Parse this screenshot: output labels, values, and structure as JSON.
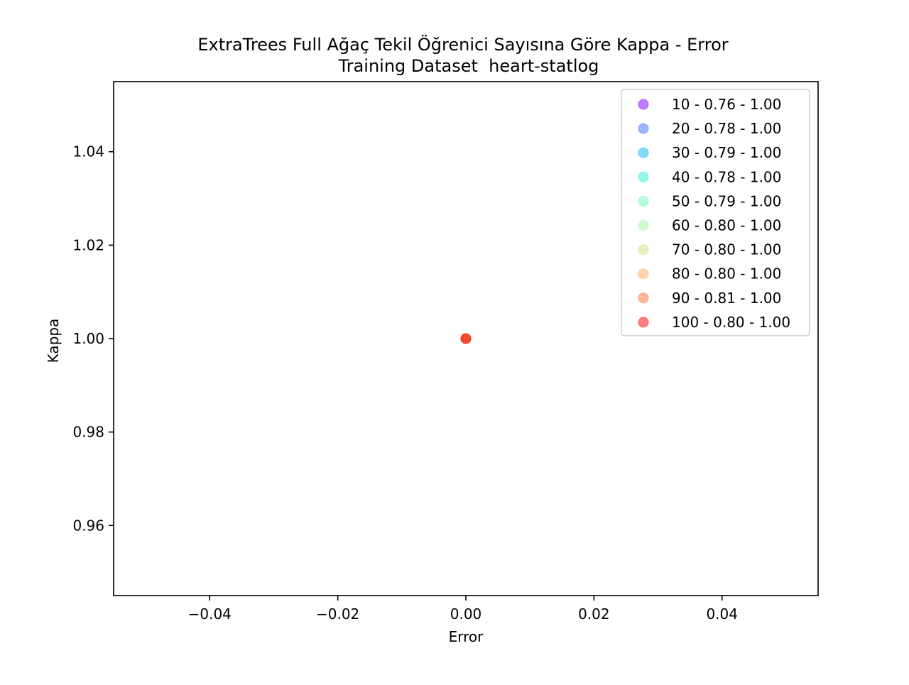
{
  "chart_data": {
    "type": "scatter",
    "title": "ExtraTrees Full Ağaç Tekil Öğrenici Sayısına Göre Kappa - Error",
    "subtitle": "Training Dataset  heart-statlog",
    "xlabel": "Error",
    "ylabel": "Kappa",
    "xlim": [
      -0.055,
      0.055
    ],
    "ylim": [
      0.945,
      1.055
    ],
    "xticks": [
      -0.04,
      -0.02,
      0.0,
      0.02,
      0.04
    ],
    "xtick_labels": [
      "−0.04",
      "−0.02",
      "0.00",
      "0.02",
      "0.04"
    ],
    "yticks": [
      0.96,
      0.98,
      1.0,
      1.02,
      1.04
    ],
    "ytick_labels": [
      "0.96",
      "0.98",
      "1.00",
      "1.02",
      "1.04"
    ],
    "grid": false,
    "legend_position": "top-right",
    "series": [
      {
        "name": "10 - 0.76 - 1.00",
        "color": "#8000ff",
        "x": [
          0.0
        ],
        "y": [
          1.0
        ]
      },
      {
        "name": "20 - 0.78 - 1.00",
        "color": "#3c6ef7",
        "x": [
          0.0
        ],
        "y": [
          1.0
        ]
      },
      {
        "name": "30 - 0.79 - 1.00",
        "color": "#07bbea",
        "x": [
          0.0
        ],
        "y": [
          1.0
        ]
      },
      {
        "name": "40 - 0.78 - 1.00",
        "color": "#2cf0d6",
        "x": [
          0.0
        ],
        "y": [
          1.0
        ]
      },
      {
        "name": "50 - 0.79 - 1.00",
        "color": "#6afcbc",
        "x": [
          0.0
        ],
        "y": [
          1.0
        ]
      },
      {
        "name": "60 - 0.80 - 1.00",
        "color": "#a4f89f",
        "x": [
          0.0
        ],
        "y": [
          1.0
        ]
      },
      {
        "name": "70 - 0.80 - 1.00",
        "color": "#d4db80",
        "x": [
          0.0
        ],
        "y": [
          1.0
        ]
      },
      {
        "name": "80 - 0.80 - 1.00",
        "color": "#ffa960",
        "x": [
          0.0
        ],
        "y": [
          1.0
        ]
      },
      {
        "name": "90 - 0.81 - 1.00",
        "color": "#ff6e3c",
        "x": [
          0.0
        ],
        "y": [
          1.0
        ]
      },
      {
        "name": "100 - 0.80 - 1.00",
        "color": "#ff0000",
        "x": [
          0.0
        ],
        "y": [
          1.0
        ]
      }
    ]
  }
}
